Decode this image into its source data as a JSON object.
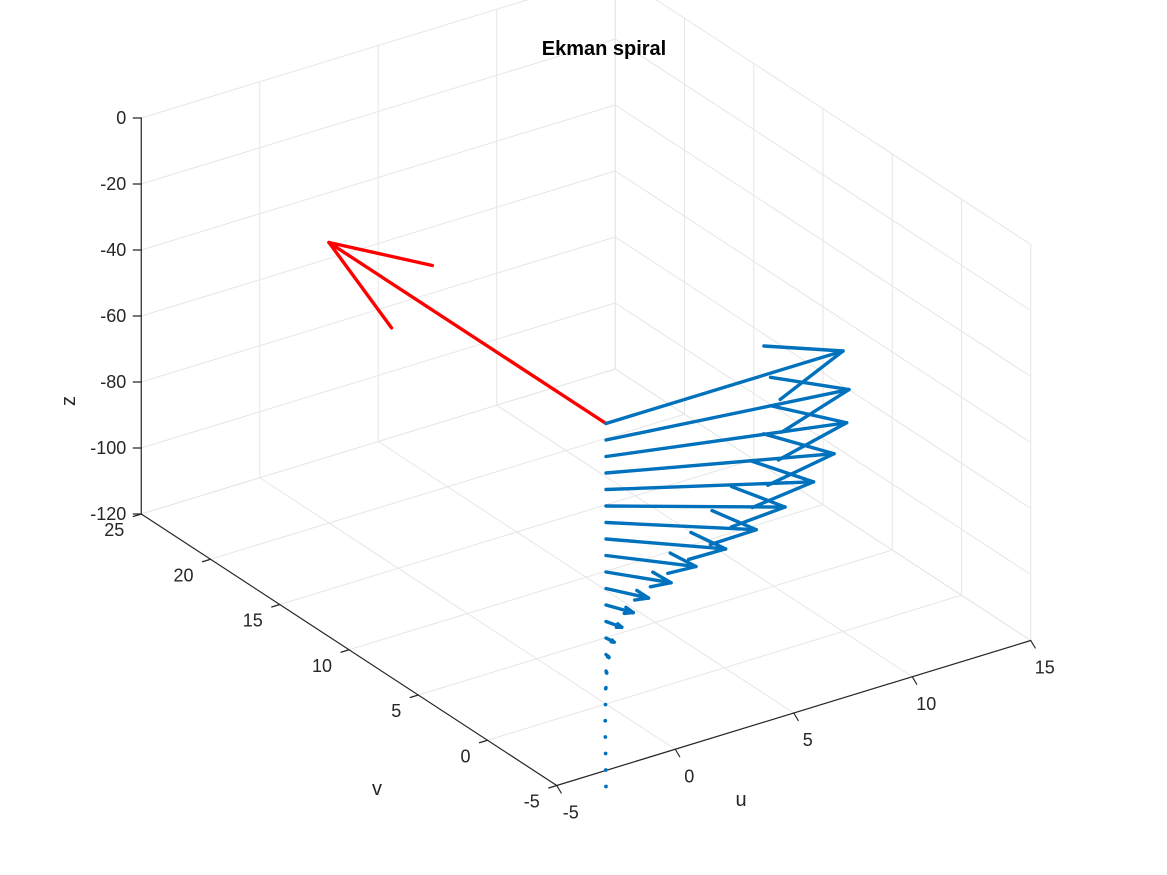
{
  "chart_data": {
    "type": "quiver3",
    "title": "Ekman spiral",
    "xlabel": "u",
    "ylabel": "v",
    "zlabel": "z",
    "xlim": [
      -5,
      15
    ],
    "ylim": [
      -5,
      25
    ],
    "zlim": [
      -120,
      0
    ],
    "x_ticks": [
      "-5",
      "0",
      "5",
      "10",
      "15"
    ],
    "y_ticks": [
      "-5",
      "0",
      "5",
      "10",
      "15",
      "20",
      "25"
    ],
    "z_ticks": [
      "0",
      "-20",
      "-40",
      "-60",
      "-80",
      "-100",
      "-120"
    ],
    "grid": true,
    "colors": {
      "wind": "#ff0000",
      "current": "#0072bd",
      "grid": "#e6e6e6",
      "axis": "#262626"
    },
    "series": [
      {
        "name": "",
        "color": "#ff0000",
        "origin": [
          0,
          0,
          -35
        ],
        "vectors": [
          [
            0,
            20,
            0
          ]
        ]
      },
      {
        "name": "",
        "color": "#0072bd",
        "origin_xy": [
          0,
          0
        ],
        "vectors": [
          [
            10.0,
            0.0,
            -35
          ],
          [
            9.2,
            -1.8,
            -40
          ],
          [
            8.4,
            -3.0,
            -45
          ],
          [
            7.4,
            -3.8,
            -50
          ],
          [
            6.3,
            -4.2,
            -55
          ],
          [
            5.1,
            -4.2,
            -60
          ],
          [
            4.0,
            -4.0,
            -65
          ],
          [
            3.0,
            -3.5,
            -70
          ],
          [
            2.1,
            -2.9,
            -75
          ],
          [
            1.4,
            -2.3,
            -80
          ],
          [
            0.8,
            -1.7,
            -85
          ],
          [
            0.45,
            -1.2,
            -90
          ],
          [
            0.2,
            -0.8,
            -95
          ],
          [
            0.05,
            -0.5,
            -100
          ],
          [
            -0.05,
            -0.3,
            -105
          ],
          [
            -0.07,
            -0.17,
            -110
          ],
          [
            -0.06,
            -0.08,
            -115
          ],
          [
            -0.04,
            -0.03,
            -120
          ],
          [
            -0.03,
            0.0,
            -125
          ],
          [
            -0.02,
            0.01,
            -130
          ],
          [
            -0.01,
            0.01,
            -135
          ],
          [
            -0.005,
            0.005,
            -140
          ],
          [
            0.0,
            0.003,
            -145
          ]
        ]
      }
    ]
  }
}
